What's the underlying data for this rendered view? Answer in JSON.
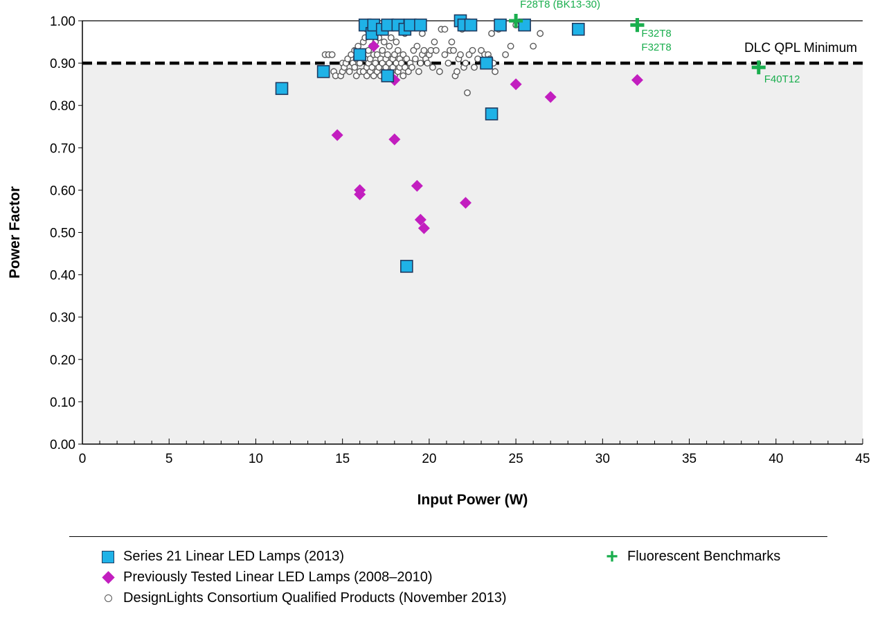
{
  "chart_data": {
    "type": "scatter",
    "xlabel": "Input Power (W)",
    "ylabel": "Power Factor",
    "xlim": [
      0,
      45
    ],
    "ylim": [
      0,
      1
    ],
    "xticks": [
      "0",
      "5",
      "10",
      "15",
      "20",
      "25",
      "30",
      "35",
      "40",
      "45"
    ],
    "yticks": [
      "0.00",
      "0.10",
      "0.20",
      "0.30",
      "0.40",
      "0.50",
      "0.60",
      "0.70",
      "0.80",
      "0.90",
      "1.00"
    ],
    "reference_line": {
      "y": 0.9,
      "label": "DLC QPL Minimum",
      "style": "dashed"
    },
    "series": [
      {
        "name": "DesignLights Consortium Qualified Products (November 2013)",
        "marker": "circle",
        "color": "#555555",
        "points": [
          [
            14.0,
            0.92
          ],
          [
            14.2,
            0.92
          ],
          [
            14.4,
            0.92
          ],
          [
            14.5,
            0.88
          ],
          [
            14.6,
            0.87
          ],
          [
            14.9,
            0.87
          ],
          [
            15.0,
            0.88
          ],
          [
            15.0,
            0.9
          ],
          [
            15.1,
            0.89
          ],
          [
            15.2,
            0.9
          ],
          [
            15.3,
            0.91
          ],
          [
            15.4,
            0.88
          ],
          [
            15.5,
            0.92
          ],
          [
            15.6,
            0.9
          ],
          [
            15.7,
            0.93
          ],
          [
            15.7,
            0.89
          ],
          [
            15.8,
            0.87
          ],
          [
            15.8,
            0.91
          ],
          [
            15.9,
            0.94
          ],
          [
            16.0,
            0.88
          ],
          [
            16.0,
            0.9
          ],
          [
            16.1,
            0.92
          ],
          [
            16.2,
            0.95
          ],
          [
            16.2,
            0.88
          ],
          [
            16.3,
            0.96
          ],
          [
            16.3,
            0.91
          ],
          [
            16.4,
            0.89
          ],
          [
            16.4,
            0.87
          ],
          [
            16.5,
            0.9
          ],
          [
            16.5,
            0.93
          ],
          [
            16.6,
            0.88
          ],
          [
            16.6,
            0.91
          ],
          [
            16.7,
            0.94
          ],
          [
            16.7,
            0.89
          ],
          [
            16.8,
            0.92
          ],
          [
            16.8,
            0.87
          ],
          [
            16.9,
            0.9
          ],
          [
            16.9,
            0.95
          ],
          [
            17.0,
            0.88
          ],
          [
            17.0,
            0.92
          ],
          [
            17.1,
            0.89
          ],
          [
            17.1,
            0.96
          ],
          [
            17.2,
            0.91
          ],
          [
            17.2,
            0.87
          ],
          [
            17.3,
            0.9
          ],
          [
            17.3,
            0.93
          ],
          [
            17.4,
            0.88
          ],
          [
            17.4,
            0.95
          ],
          [
            17.5,
            0.91
          ],
          [
            17.5,
            0.89
          ],
          [
            17.6,
            0.92
          ],
          [
            17.6,
            0.87
          ],
          [
            17.7,
            0.9
          ],
          [
            17.7,
            0.94
          ],
          [
            17.8,
            0.88
          ],
          [
            17.8,
            0.96
          ],
          [
            17.9,
            0.91
          ],
          [
            17.9,
            0.89
          ],
          [
            18.0,
            0.92
          ],
          [
            18.0,
            0.87
          ],
          [
            18.1,
            0.9
          ],
          [
            18.1,
            0.95
          ],
          [
            18.2,
            0.88
          ],
          [
            18.2,
            0.93
          ],
          [
            18.3,
            0.89
          ],
          [
            18.3,
            0.91
          ],
          [
            18.4,
            0.9
          ],
          [
            18.5,
            0.87
          ],
          [
            18.5,
            0.92
          ],
          [
            18.6,
            0.89
          ],
          [
            18.7,
            0.91
          ],
          [
            18.8,
            0.88
          ],
          [
            18.9,
            0.9
          ],
          [
            19.0,
            0.89
          ],
          [
            19.1,
            0.93
          ],
          [
            19.2,
            0.91
          ],
          [
            19.3,
            0.94
          ],
          [
            19.4,
            0.88
          ],
          [
            19.5,
            0.9
          ],
          [
            19.6,
            0.92
          ],
          [
            19.7,
            0.93
          ],
          [
            19.8,
            0.91
          ],
          [
            19.9,
            0.9
          ],
          [
            20.0,
            0.92
          ],
          [
            20.1,
            0.93
          ],
          [
            20.2,
            0.89
          ],
          [
            20.3,
            0.95
          ],
          [
            20.4,
            0.93
          ],
          [
            20.6,
            0.88
          ],
          [
            20.7,
            0.98
          ],
          [
            20.9,
            0.92
          ],
          [
            21.1,
            0.9
          ],
          [
            21.2,
            0.93
          ],
          [
            21.3,
            0.95
          ],
          [
            21.4,
            0.93
          ],
          [
            21.5,
            0.87
          ],
          [
            21.6,
            0.88
          ],
          [
            21.7,
            0.91
          ],
          [
            21.8,
            0.92
          ],
          [
            22.0,
            0.89
          ],
          [
            22.1,
            0.9
          ],
          [
            22.2,
            0.83
          ],
          [
            22.3,
            0.92
          ],
          [
            22.5,
            0.93
          ],
          [
            22.6,
            0.89
          ],
          [
            22.8,
            0.91
          ],
          [
            23.0,
            0.93
          ],
          [
            23.2,
            0.92
          ],
          [
            23.4,
            0.92
          ],
          [
            23.5,
            0.91
          ],
          [
            23.7,
            0.9
          ],
          [
            23.8,
            0.88
          ],
          [
            23.6,
            0.97
          ],
          [
            24.0,
            0.98
          ],
          [
            24.4,
            0.92
          ],
          [
            24.7,
            0.94
          ],
          [
            25.0,
            0.99
          ],
          [
            26.0,
            0.94
          ],
          [
            26.4,
            0.97
          ],
          [
            18.6,
            0.97
          ],
          [
            19.6,
            0.97
          ],
          [
            20.9,
            0.98
          ],
          [
            21.9,
            0.98
          ],
          [
            17.1,
            0.98
          ],
          [
            16.4,
            0.98
          ]
        ]
      },
      {
        "name": "Previously Tested  Linear LED Lamps (2008–2010)",
        "marker": "diamond",
        "color": "#c21ebf",
        "points": [
          [
            16.8,
            0.94
          ],
          [
            18.0,
            0.86
          ],
          [
            14.7,
            0.73
          ],
          [
            18.0,
            0.72
          ],
          [
            16.0,
            0.6
          ],
          [
            16.0,
            0.59
          ],
          [
            19.3,
            0.61
          ],
          [
            19.5,
            0.53
          ],
          [
            19.7,
            0.51
          ],
          [
            22.1,
            0.57
          ],
          [
            25.0,
            0.85
          ],
          [
            27.0,
            0.82
          ],
          [
            32.0,
            0.86
          ]
        ]
      },
      {
        "name": "Series 21 Linear LED Lamps (2013)",
        "marker": "square",
        "color": "#1fb2e7",
        "points": [
          [
            11.5,
            0.84
          ],
          [
            13.9,
            0.88
          ],
          [
            16.0,
            0.92
          ],
          [
            16.3,
            0.99
          ],
          [
            16.7,
            0.97
          ],
          [
            16.8,
            0.99
          ],
          [
            17.3,
            0.98
          ],
          [
            17.6,
            0.87
          ],
          [
            17.6,
            0.99
          ],
          [
            18.2,
            0.99
          ],
          [
            18.6,
            0.98
          ],
          [
            18.7,
            0.42
          ],
          [
            18.9,
            0.99
          ],
          [
            19.5,
            0.99
          ],
          [
            21.8,
            1.0
          ],
          [
            22.0,
            0.99
          ],
          [
            22.4,
            0.99
          ],
          [
            23.3,
            0.9
          ],
          [
            23.6,
            0.78
          ],
          [
            24.1,
            0.99
          ],
          [
            25.5,
            0.99
          ],
          [
            28.6,
            0.98
          ]
        ]
      },
      {
        "name": "Fluorescent Benchmarks",
        "marker": "plus",
        "color": "#1aae4e",
        "points": [
          {
            "x": 25.0,
            "y": 1.0,
            "label": "F28T8 (BK13-30)"
          },
          {
            "x": 32.0,
            "y": 0.99,
            "label": "F32T8"
          },
          {
            "x": 32.0,
            "y": 0.99,
            "label": "F32T8"
          },
          {
            "x": 39.0,
            "y": 0.89,
            "label": "F40T12"
          }
        ]
      }
    ],
    "legend": {
      "position": "bottom",
      "items": [
        {
          "label": "Series 21 Linear LED Lamps (2013)",
          "marker": "square"
        },
        {
          "label": "Previously Tested  Linear LED Lamps (2008–2010)",
          "marker": "diamond"
        },
        {
          "label": "DesignLights Consortium Qualified Products (November 2013)",
          "marker": "circle"
        },
        {
          "label": "Fluorescent Benchmarks",
          "marker": "plus"
        }
      ]
    }
  }
}
